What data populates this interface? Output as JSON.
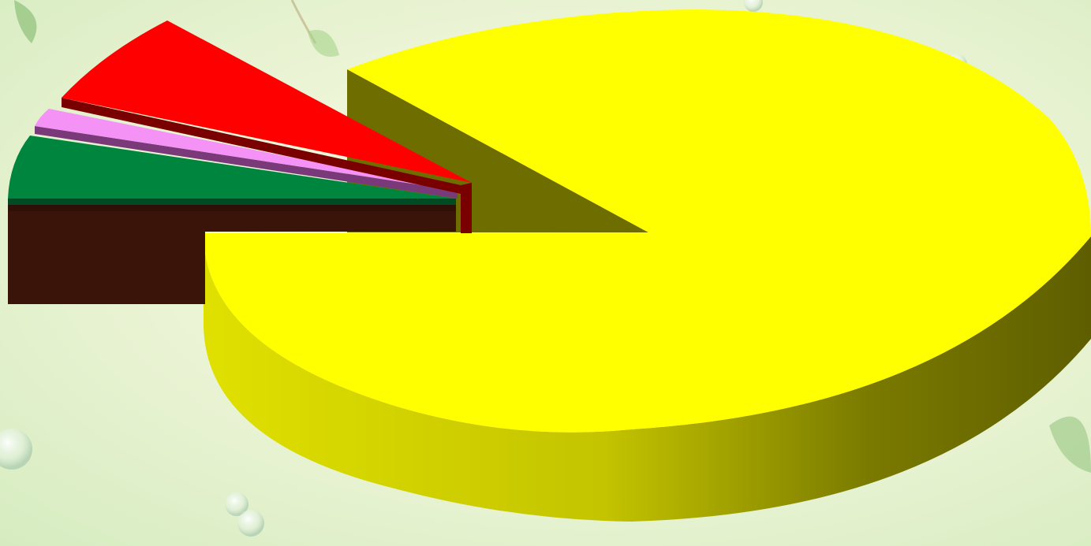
{
  "chart_data": {
    "type": "pie",
    "style": "3d-exploded",
    "title": "",
    "slices": [
      {
        "value": 83.5,
        "color": "#ffff00",
        "side": "#6e6e00"
      },
      {
        "value": 9.0,
        "color": "#ff0000",
        "side": "#7a0000"
      },
      {
        "value": 1.5,
        "color": "#f592f5",
        "side": "#7a3a7a"
      },
      {
        "value": 3.0,
        "color": "#00853e",
        "side": "#004b22"
      },
      {
        "value": 3.0,
        "color": "#4a1c0d",
        "side": "#3a1409"
      }
    ]
  },
  "background": {
    "style": "light green gradient with leaves and water bubbles"
  }
}
